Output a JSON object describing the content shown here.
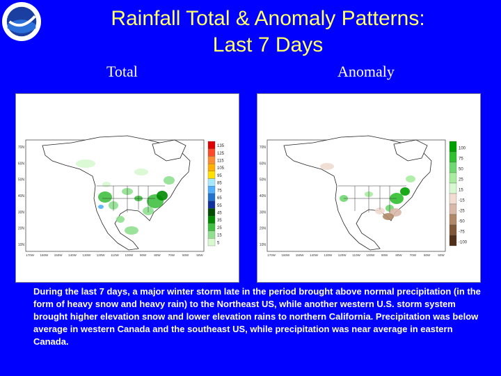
{
  "title_line1": "Rainfall Total & Anomaly Patterns:",
  "title_line2": "Last 7 Days",
  "logo_text": "NOAA",
  "panels": {
    "total": {
      "label": "Total",
      "legend": [
        "135",
        "125",
        "115",
        "105",
        "95",
        "85",
        "75",
        "65",
        "55",
        "45",
        "35",
        "25",
        "15",
        "5"
      ],
      "legend_colors": [
        "#e00000",
        "#ff4a2a",
        "#ff8c33",
        "#ffb000",
        "#ffe000",
        "#a8e8ff",
        "#50b0ff",
        "#2070d0",
        "#1030a0",
        "#004d00",
        "#008a00",
        "#40c040",
        "#90e090",
        "#d8f8d0"
      ]
    },
    "anomaly": {
      "label": "Anomaly",
      "legend": [
        "100",
        "75",
        "50",
        "25",
        "15",
        "-15",
        "-25",
        "-50",
        "-75",
        "-100"
      ],
      "legend_colors": [
        "#00a000",
        "#30c030",
        "#70d870",
        "#a8eca0",
        "#d8f8d0",
        "#f0dcd0",
        "#d8b8a8",
        "#b08868",
        "#805838",
        "#503018"
      ]
    }
  },
  "axis": {
    "lat_labels": [
      "70N",
      "60N",
      "50N",
      "40N",
      "30N",
      "20N",
      "10N"
    ],
    "lon_labels": [
      "170W",
      "160W",
      "150W",
      "140W",
      "130W",
      "120W",
      "110W",
      "100W",
      "90W",
      "80W",
      "70W",
      "60W",
      "50W"
    ]
  },
  "caption": "During the last 7 days, a major winter storm late in the period brought above normal precipitation (in the form of heavy snow and heavy rain) to the Northeast US, while another western U.S. storm system brought higher elevation snow and lower elevation rains to northern California. Precipitation was below average in western Canada and the southeast US, while precipitation was near average in eastern Canada."
}
